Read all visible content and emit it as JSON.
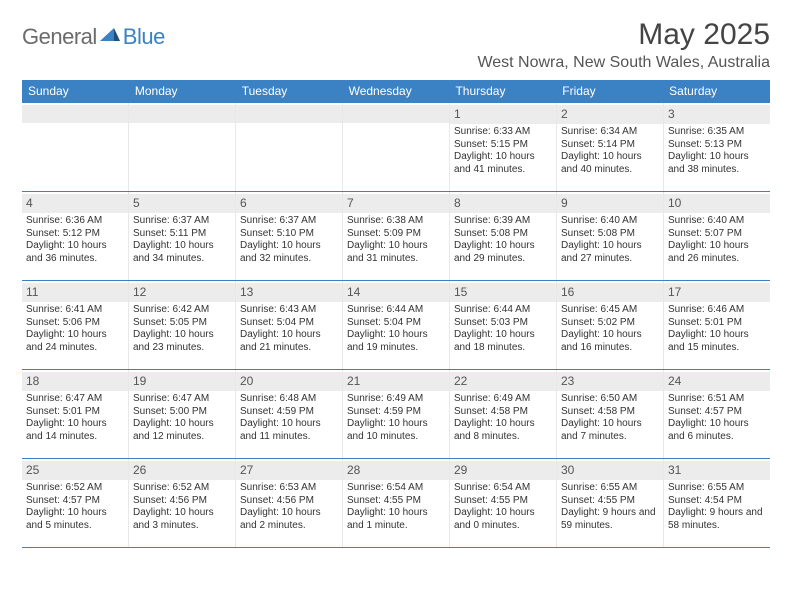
{
  "brand": {
    "general": "General",
    "blue": "Blue"
  },
  "title": "May 2025",
  "location": "West Nowra, New South Wales, Australia",
  "colors": {
    "accent": "#3b82c4",
    "header_text": "#ffffff",
    "daynum_bg": "#ececec",
    "rule": "#3b82c4",
    "brand_gray": "#6b6b6b",
    "brand_blue": "#3b82c4"
  },
  "dow": [
    "Sunday",
    "Monday",
    "Tuesday",
    "Wednesday",
    "Thursday",
    "Friday",
    "Saturday"
  ],
  "weeks": [
    [
      {
        "n": "",
        "sr": "",
        "ss": "",
        "dl": ""
      },
      {
        "n": "",
        "sr": "",
        "ss": "",
        "dl": ""
      },
      {
        "n": "",
        "sr": "",
        "ss": "",
        "dl": ""
      },
      {
        "n": "",
        "sr": "",
        "ss": "",
        "dl": ""
      },
      {
        "n": "1",
        "sr": "Sunrise: 6:33 AM",
        "ss": "Sunset: 5:15 PM",
        "dl": "Daylight: 10 hours and 41 minutes."
      },
      {
        "n": "2",
        "sr": "Sunrise: 6:34 AM",
        "ss": "Sunset: 5:14 PM",
        "dl": "Daylight: 10 hours and 40 minutes."
      },
      {
        "n": "3",
        "sr": "Sunrise: 6:35 AM",
        "ss": "Sunset: 5:13 PM",
        "dl": "Daylight: 10 hours and 38 minutes."
      }
    ],
    [
      {
        "n": "4",
        "sr": "Sunrise: 6:36 AM",
        "ss": "Sunset: 5:12 PM",
        "dl": "Daylight: 10 hours and 36 minutes."
      },
      {
        "n": "5",
        "sr": "Sunrise: 6:37 AM",
        "ss": "Sunset: 5:11 PM",
        "dl": "Daylight: 10 hours and 34 minutes."
      },
      {
        "n": "6",
        "sr": "Sunrise: 6:37 AM",
        "ss": "Sunset: 5:10 PM",
        "dl": "Daylight: 10 hours and 32 minutes."
      },
      {
        "n": "7",
        "sr": "Sunrise: 6:38 AM",
        "ss": "Sunset: 5:09 PM",
        "dl": "Daylight: 10 hours and 31 minutes."
      },
      {
        "n": "8",
        "sr": "Sunrise: 6:39 AM",
        "ss": "Sunset: 5:08 PM",
        "dl": "Daylight: 10 hours and 29 minutes."
      },
      {
        "n": "9",
        "sr": "Sunrise: 6:40 AM",
        "ss": "Sunset: 5:08 PM",
        "dl": "Daylight: 10 hours and 27 minutes."
      },
      {
        "n": "10",
        "sr": "Sunrise: 6:40 AM",
        "ss": "Sunset: 5:07 PM",
        "dl": "Daylight: 10 hours and 26 minutes."
      }
    ],
    [
      {
        "n": "11",
        "sr": "Sunrise: 6:41 AM",
        "ss": "Sunset: 5:06 PM",
        "dl": "Daylight: 10 hours and 24 minutes."
      },
      {
        "n": "12",
        "sr": "Sunrise: 6:42 AM",
        "ss": "Sunset: 5:05 PM",
        "dl": "Daylight: 10 hours and 23 minutes."
      },
      {
        "n": "13",
        "sr": "Sunrise: 6:43 AM",
        "ss": "Sunset: 5:04 PM",
        "dl": "Daylight: 10 hours and 21 minutes."
      },
      {
        "n": "14",
        "sr": "Sunrise: 6:44 AM",
        "ss": "Sunset: 5:04 PM",
        "dl": "Daylight: 10 hours and 19 minutes."
      },
      {
        "n": "15",
        "sr": "Sunrise: 6:44 AM",
        "ss": "Sunset: 5:03 PM",
        "dl": "Daylight: 10 hours and 18 minutes."
      },
      {
        "n": "16",
        "sr": "Sunrise: 6:45 AM",
        "ss": "Sunset: 5:02 PM",
        "dl": "Daylight: 10 hours and 16 minutes."
      },
      {
        "n": "17",
        "sr": "Sunrise: 6:46 AM",
        "ss": "Sunset: 5:01 PM",
        "dl": "Daylight: 10 hours and 15 minutes."
      }
    ],
    [
      {
        "n": "18",
        "sr": "Sunrise: 6:47 AM",
        "ss": "Sunset: 5:01 PM",
        "dl": "Daylight: 10 hours and 14 minutes."
      },
      {
        "n": "19",
        "sr": "Sunrise: 6:47 AM",
        "ss": "Sunset: 5:00 PM",
        "dl": "Daylight: 10 hours and 12 minutes."
      },
      {
        "n": "20",
        "sr": "Sunrise: 6:48 AM",
        "ss": "Sunset: 4:59 PM",
        "dl": "Daylight: 10 hours and 11 minutes."
      },
      {
        "n": "21",
        "sr": "Sunrise: 6:49 AM",
        "ss": "Sunset: 4:59 PM",
        "dl": "Daylight: 10 hours and 10 minutes."
      },
      {
        "n": "22",
        "sr": "Sunrise: 6:49 AM",
        "ss": "Sunset: 4:58 PM",
        "dl": "Daylight: 10 hours and 8 minutes."
      },
      {
        "n": "23",
        "sr": "Sunrise: 6:50 AM",
        "ss": "Sunset: 4:58 PM",
        "dl": "Daylight: 10 hours and 7 minutes."
      },
      {
        "n": "24",
        "sr": "Sunrise: 6:51 AM",
        "ss": "Sunset: 4:57 PM",
        "dl": "Daylight: 10 hours and 6 minutes."
      }
    ],
    [
      {
        "n": "25",
        "sr": "Sunrise: 6:52 AM",
        "ss": "Sunset: 4:57 PM",
        "dl": "Daylight: 10 hours and 5 minutes."
      },
      {
        "n": "26",
        "sr": "Sunrise: 6:52 AM",
        "ss": "Sunset: 4:56 PM",
        "dl": "Daylight: 10 hours and 3 minutes."
      },
      {
        "n": "27",
        "sr": "Sunrise: 6:53 AM",
        "ss": "Sunset: 4:56 PM",
        "dl": "Daylight: 10 hours and 2 minutes."
      },
      {
        "n": "28",
        "sr": "Sunrise: 6:54 AM",
        "ss": "Sunset: 4:55 PM",
        "dl": "Daylight: 10 hours and 1 minute."
      },
      {
        "n": "29",
        "sr": "Sunrise: 6:54 AM",
        "ss": "Sunset: 4:55 PM",
        "dl": "Daylight: 10 hours and 0 minutes."
      },
      {
        "n": "30",
        "sr": "Sunrise: 6:55 AM",
        "ss": "Sunset: 4:55 PM",
        "dl": "Daylight: 9 hours and 59 minutes."
      },
      {
        "n": "31",
        "sr": "Sunrise: 6:55 AM",
        "ss": "Sunset: 4:54 PM",
        "dl": "Daylight: 9 hours and 58 minutes."
      }
    ]
  ]
}
